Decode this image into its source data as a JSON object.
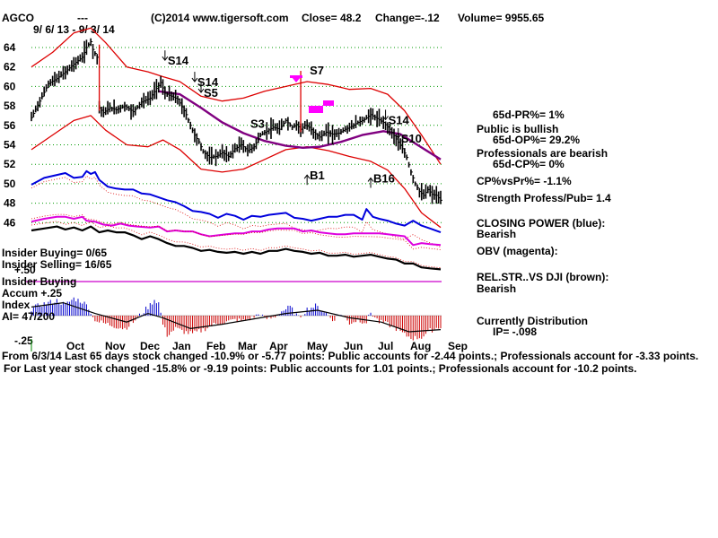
{
  "header": {
    "symbol": "AGCO",
    "dashes": "---",
    "date_range": "9/ 6/ 13 - 9/ 3/ 14",
    "copyright": "(C)2014 www.tigersoft.com",
    "close": "Close=  48.2",
    "change": "Change=-.12",
    "volume": "Volume= 9955.65"
  },
  "right_panel": {
    "pr": "65d-PR%= 1%",
    "public_status": "Public is bullish",
    "op": "65d-OP%= 29.2%",
    "pro_status": "Professionals are bearish",
    "cp": "65d-CP%= 0%",
    "cpvspr": "CP%vsPr%= -1.1%",
    "strength": "Strength Profess/Pub= 1.4",
    "closing_power": "CLOSING POWER (blue):",
    "closing_power_status": "Bearish",
    "obv": "OBV (magenta):",
    "relstr": "REL.STR..VS DJI (brown):",
    "relstr_status": "Bearish",
    "distribution": "Currently Distribution",
    "ip": "IP= -.098"
  },
  "left_panel": {
    "insider_buying": "Insider Buying= 0/65",
    "insider_selling": "Insider Selling= 16/65",
    "plus50": "+.50",
    "insider_buying2": "Insider Buying",
    "accum": "Accum  +.25",
    "index": "Index",
    "ai": "AI= 47/200",
    "minus25": "-.25"
  },
  "footer": {
    "line1": "From 6/3/14 Last 65 days stock changed -10.9% or -5.77 points:  Public accounts for -2.44 points.;  Professionals account for -3.33 points.",
    "line2": "For Last year stock changed -15.8% or -9.19 points:  Public accounts for  1.01 points.;  Professionals account for -10.2 points."
  },
  "colors": {
    "price": "#000000",
    "band": "#dd0000",
    "ma": "#800080",
    "closing_power": "#0000dd",
    "obv": "#dd00dd",
    "relstr": "#000000",
    "accum_pos": "#0000cc",
    "accum_neg": "#cc0000",
    "grid": "#009900",
    "signal": "#ff00ff"
  },
  "chart_data": {
    "type": "line",
    "title": "AGCO",
    "x_tick_labels": [
      "Oct",
      "Nov",
      "Dec",
      "Jan",
      "Feb",
      "Mar",
      "Apr",
      "May",
      "Jun",
      "Jul",
      "Aug",
      "Sep"
    ],
    "y_tick_labels": [
      "64",
      "62",
      "60",
      "58",
      "56",
      "54",
      "52",
      "50",
      "48",
      "46"
    ],
    "ylim": [
      44.5,
      65.5
    ],
    "grid": true,
    "price_close": [
      [
        0,
        56.8
      ],
      [
        4,
        58.5
      ],
      [
        8,
        60.3
      ],
      [
        12,
        60.8
      ],
      [
        16,
        61.5
      ],
      [
        20,
        62.3
      ],
      [
        24,
        63
      ],
      [
        26,
        64
      ],
      [
        28,
        64.6
      ],
      [
        29,
        63.8
      ],
      [
        31,
        63
      ],
      [
        32,
        57.8
      ],
      [
        34,
        57.3
      ],
      [
        37,
        57.8
      ],
      [
        40,
        57.6
      ],
      [
        44,
        58
      ],
      [
        48,
        57.4
      ],
      [
        52,
        58.4
      ],
      [
        56,
        58.8
      ],
      [
        59,
        59.8
      ],
      [
        61,
        60.4
      ],
      [
        63,
        59.3
      ],
      [
        66,
        59
      ],
      [
        69,
        58.7
      ],
      [
        71,
        57.9
      ],
      [
        73,
        57.1
      ],
      [
        75,
        56
      ],
      [
        77,
        55
      ],
      [
        79,
        54.3
      ],
      [
        81,
        53.3
      ],
      [
        84,
        52.7
      ],
      [
        87,
        52.8
      ],
      [
        90,
        53.2
      ],
      [
        93,
        52.8
      ],
      [
        96,
        53.6
      ],
      [
        99,
        54
      ],
      [
        102,
        53.4
      ],
      [
        105,
        53.8
      ],
      [
        108,
        55
      ],
      [
        111,
        55.4
      ],
      [
        114,
        55.8
      ],
      [
        117,
        55.6
      ],
      [
        120,
        56.5
      ],
      [
        123,
        55.8
      ],
      [
        125,
        56.1
      ],
      [
        127,
        55.6
      ],
      [
        129,
        56
      ],
      [
        131,
        55.8
      ],
      [
        133,
        55.3
      ],
      [
        136,
        54.8
      ],
      [
        139,
        55.3
      ],
      [
        142,
        55.1
      ],
      [
        145,
        55.2
      ],
      [
        148,
        55.6
      ],
      [
        151,
        55.9
      ],
      [
        154,
        56.3
      ],
      [
        157,
        56.6
      ],
      [
        160,
        57.1
      ],
      [
        163,
        56.7
      ],
      [
        166,
        56.3
      ],
      [
        169,
        55.6
      ],
      [
        172,
        54.6
      ],
      [
        175,
        53.6
      ],
      [
        177,
        52.7
      ],
      [
        179,
        51.2
      ],
      [
        181,
        50
      ],
      [
        183,
        49.2
      ],
      [
        185,
        48.8
      ],
      [
        187,
        49.4
      ],
      [
        189,
        48.9
      ],
      [
        191,
        48.8
      ],
      [
        193,
        48.3
      ]
    ],
    "band_upper": [
      [
        0,
        62
      ],
      [
        10,
        63.5
      ],
      [
        20,
        65.5
      ],
      [
        28,
        66
      ],
      [
        35,
        64.5
      ],
      [
        45,
        62
      ],
      [
        55,
        61.5
      ],
      [
        62,
        61
      ],
      [
        70,
        60.5
      ],
      [
        80,
        59
      ],
      [
        90,
        58.5
      ],
      [
        100,
        58.8
      ],
      [
        110,
        59.5
      ],
      [
        120,
        60
      ],
      [
        130,
        60.5
      ],
      [
        140,
        60.2
      ],
      [
        150,
        59.7
      ],
      [
        160,
        59.8
      ],
      [
        168,
        59.2
      ],
      [
        176,
        57.5
      ],
      [
        184,
        55
      ],
      [
        193,
        52
      ]
    ],
    "band_lower": [
      [
        0,
        53.5
      ],
      [
        10,
        55
      ],
      [
        20,
        56.5
      ],
      [
        28,
        57
      ],
      [
        35,
        55.5
      ],
      [
        45,
        54
      ],
      [
        55,
        53.8
      ],
      [
        62,
        54.5
      ],
      [
        70,
        53.5
      ],
      [
        80,
        51.5
      ],
      [
        90,
        51.2
      ],
      [
        100,
        51.5
      ],
      [
        110,
        52.5
      ],
      [
        120,
        53.5
      ],
      [
        130,
        53.8
      ],
      [
        140,
        53.4
      ],
      [
        150,
        52.8
      ],
      [
        160,
        52.3
      ],
      [
        168,
        51.4
      ],
      [
        176,
        49.5
      ],
      [
        184,
        47
      ],
      [
        193,
        45.5
      ]
    ],
    "ma_65": [
      [
        60,
        59.5
      ],
      [
        70,
        59.2
      ],
      [
        80,
        57.8
      ],
      [
        90,
        56.3
      ],
      [
        100,
        55.2
      ],
      [
        110,
        54.4
      ],
      [
        120,
        53.9
      ],
      [
        128,
        53.7
      ],
      [
        136,
        53.8
      ],
      [
        146,
        54.3
      ],
      [
        156,
        55
      ],
      [
        166,
        55.4
      ],
      [
        174,
        55.1
      ],
      [
        182,
        54
      ],
      [
        193,
        52.5
      ]
    ],
    "closing_power_blue": [
      [
        0,
        49.9
      ],
      [
        6,
        50.6
      ],
      [
        12,
        50.9
      ],
      [
        16,
        51.1
      ],
      [
        20,
        50.6
      ],
      [
        24,
        50.7
      ],
      [
        26,
        51.3
      ],
      [
        28,
        51
      ],
      [
        30,
        51.2
      ],
      [
        32,
        50.4
      ],
      [
        36,
        49.7
      ],
      [
        40,
        49.5
      ],
      [
        44,
        49.4
      ],
      [
        48,
        49.4
      ],
      [
        52,
        49
      ],
      [
        56,
        48.9
      ],
      [
        60,
        48.6
      ],
      [
        64,
        48.3
      ],
      [
        68,
        48.1
      ],
      [
        72,
        47.7
      ],
      [
        76,
        47.2
      ],
      [
        80,
        47.1
      ],
      [
        84,
        46.9
      ],
      [
        88,
        46.5
      ],
      [
        92,
        46.9
      ],
      [
        96,
        46.7
      ],
      [
        100,
        46.3
      ],
      [
        104,
        46.7
      ],
      [
        108,
        46.6
      ],
      [
        112,
        46.8
      ],
      [
        116,
        46.9
      ],
      [
        120,
        47
      ],
      [
        124,
        46.5
      ],
      [
        128,
        46.4
      ],
      [
        132,
        46.2
      ],
      [
        136,
        46.4
      ],
      [
        140,
        46.6
      ],
      [
        144,
        46.6
      ],
      [
        148,
        46.8
      ],
      [
        152,
        46.8
      ],
      [
        156,
        46.3
      ],
      [
        158,
        47.4
      ],
      [
        161,
        46.6
      ],
      [
        164,
        46.4
      ],
      [
        168,
        46.2
      ],
      [
        172,
        45.9
      ],
      [
        176,
        45.7
      ],
      [
        180,
        46.2
      ],
      [
        184,
        45.7
      ],
      [
        188,
        45.4
      ],
      [
        193,
        45
      ]
    ],
    "obv_magenta": [
      [
        0,
        46.1
      ],
      [
        6,
        46.4
      ],
      [
        12,
        46.6
      ],
      [
        16,
        46.6
      ],
      [
        20,
        46.4
      ],
      [
        24,
        46.6
      ],
      [
        26,
        46.2
      ],
      [
        30,
        46.1
      ],
      [
        34,
        45.8
      ],
      [
        38,
        45.7
      ],
      [
        42,
        45.9
      ],
      [
        46,
        45.7
      ],
      [
        50,
        45.6
      ],
      [
        56,
        45.5
      ],
      [
        60,
        45.6
      ],
      [
        64,
        45.1
      ],
      [
        68,
        45.2
      ],
      [
        72,
        45.1
      ],
      [
        76,
        45.1
      ],
      [
        80,
        44.8
      ],
      [
        84,
        44.6
      ],
      [
        88,
        44.7
      ],
      [
        92,
        44.8
      ],
      [
        96,
        44.9
      ],
      [
        100,
        44.9
      ],
      [
        104,
        45.1
      ],
      [
        108,
        45.1
      ],
      [
        112,
        45.3
      ],
      [
        116,
        45.4
      ],
      [
        120,
        45.4
      ],
      [
        124,
        45.4
      ],
      [
        128,
        45.1
      ],
      [
        132,
        45.2
      ],
      [
        136,
        45
      ],
      [
        140,
        44.9
      ],
      [
        144,
        44.8
      ],
      [
        148,
        44.8
      ],
      [
        152,
        44.9
      ],
      [
        156,
        44.9
      ],
      [
        160,
        44.9
      ],
      [
        164,
        44.9
      ],
      [
        168,
        44.8
      ],
      [
        172,
        44.7
      ],
      [
        176,
        44.6
      ],
      [
        180,
        43.7
      ],
      [
        184,
        43.9
      ],
      [
        188,
        43.8
      ],
      [
        193,
        43.7
      ]
    ]
  },
  "signals": [
    {
      "label": "S14",
      "x": 63,
      "y": 62.6,
      "arrow": "down",
      "side": "right"
    },
    {
      "label": "S14",
      "x": 77,
      "y": 60.4,
      "arrow": "down",
      "side": "right"
    },
    {
      "label": "S5",
      "x": 80,
      "y": 59.3,
      "arrow": "down",
      "side": "right"
    },
    {
      "label": "S3",
      "x": 102,
      "y": 56.1,
      "arrow": "none",
      "side": "right"
    },
    {
      "label": "S7",
      "x": 130,
      "y": 61.6,
      "arrow": "none",
      "side": "right"
    },
    {
      "label": "B1",
      "x": 130,
      "y": 50.8,
      "arrow": "up",
      "side": "right"
    },
    {
      "label": "B16",
      "x": 160,
      "y": 50.5,
      "arrow": "up",
      "side": "right"
    },
    {
      "label": "S14",
      "x": 167,
      "y": 56.5,
      "arrow": "down",
      "side": "right"
    },
    {
      "label": "S10",
      "x": 173,
      "y": 54.6,
      "arrow": "down",
      "side": "right"
    }
  ],
  "relstr_brown": [
    [
      0,
      45.2
    ],
    [
      6,
      45.4
    ],
    [
      12,
      45.6
    ],
    [
      16,
      45.3
    ],
    [
      20,
      45.5
    ],
    [
      24,
      45.2
    ],
    [
      28,
      45.6
    ],
    [
      32,
      45
    ],
    [
      36,
      45.2
    ],
    [
      40,
      45
    ],
    [
      44,
      45
    ],
    [
      48,
      44.7
    ],
    [
      52,
      44.3
    ],
    [
      56,
      44.6
    ],
    [
      60,
      44.3
    ],
    [
      64,
      43.9
    ],
    [
      68,
      43.6
    ],
    [
      72,
      43.6
    ],
    [
      76,
      43.4
    ],
    [
      80,
      43.1
    ],
    [
      84,
      43.2
    ],
    [
      88,
      43
    ],
    [
      92,
      42.9
    ],
    [
      96,
      43
    ],
    [
      100,
      42.8
    ],
    [
      104,
      43
    ],
    [
      108,
      42.8
    ],
    [
      112,
      43.1
    ],
    [
      116,
      43.1
    ],
    [
      120,
      43.3
    ],
    [
      124,
      43.1
    ],
    [
      128,
      43
    ],
    [
      132,
      42.8
    ],
    [
      136,
      42.9
    ],
    [
      140,
      42.6
    ],
    [
      144,
      42.6
    ],
    [
      148,
      42.7
    ],
    [
      152,
      42.5
    ],
    [
      156,
      42.6
    ],
    [
      160,
      42.7
    ],
    [
      164,
      42.5
    ],
    [
      168,
      42.3
    ],
    [
      172,
      42.2
    ],
    [
      176,
      41.8
    ],
    [
      180,
      41.8
    ],
    [
      184,
      41.4
    ],
    [
      188,
      41.3
    ],
    [
      193,
      41.2
    ]
  ],
  "accum_values": [
    [
      0,
      0.06
    ],
    [
      4,
      0.1
    ],
    [
      8,
      0.12
    ],
    [
      12,
      0.14
    ],
    [
      16,
      0.1
    ],
    [
      20,
      0.16
    ],
    [
      24,
      0.13
    ],
    [
      27,
      0.08
    ],
    [
      29,
      -0.02
    ],
    [
      32,
      -0.06
    ],
    [
      36,
      -0.08
    ],
    [
      40,
      -0.1
    ],
    [
      44,
      -0.12
    ],
    [
      48,
      -0.06
    ],
    [
      52,
      0.02
    ],
    [
      56,
      0.1
    ],
    [
      58,
      0.15
    ],
    [
      60,
      0.12
    ],
    [
      62,
      -0.08
    ],
    [
      64,
      -0.18
    ],
    [
      68,
      -0.12
    ],
    [
      72,
      -0.15
    ],
    [
      76,
      -0.17
    ],
    [
      80,
      -0.14
    ],
    [
      84,
      -0.1
    ],
    [
      88,
      -0.07
    ],
    [
      92,
      -0.06
    ],
    [
      96,
      -0.04
    ],
    [
      100,
      -0.05
    ],
    [
      104,
      -0.02
    ],
    [
      108,
      0.02
    ],
    [
      110,
      -0.03
    ],
    [
      114,
      -0.02
    ],
    [
      118,
      0.04
    ],
    [
      122,
      0.08
    ],
    [
      126,
      -0.02
    ],
    [
      130,
      0.06
    ],
    [
      134,
      0.09
    ],
    [
      138,
      0.04
    ],
    [
      142,
      -0.04
    ],
    [
      146,
      0.02
    ],
    [
      150,
      -0.07
    ],
    [
      154,
      -0.04
    ],
    [
      158,
      -0.06
    ],
    [
      160,
      0.03
    ],
    [
      164,
      -0.06
    ],
    [
      168,
      -0.08
    ],
    [
      172,
      -0.12
    ],
    [
      176,
      -0.18
    ],
    [
      180,
      -0.21
    ],
    [
      184,
      -0.2
    ],
    [
      188,
      -0.14
    ],
    [
      193,
      -0.1
    ]
  ],
  "accum_smooth": [
    [
      0,
      0.08
    ],
    [
      15,
      0.12
    ],
    [
      30,
      0.02
    ],
    [
      45,
      -0.06
    ],
    [
      55,
      0.02
    ],
    [
      62,
      -0.02
    ],
    [
      75,
      -0.12
    ],
    [
      90,
      -0.08
    ],
    [
      105,
      -0.03
    ],
    [
      120,
      0.02
    ],
    [
      135,
      0.05
    ],
    [
      150,
      -0.02
    ],
    [
      165,
      -0.06
    ],
    [
      178,
      -0.15
    ],
    [
      193,
      -0.13
    ]
  ]
}
